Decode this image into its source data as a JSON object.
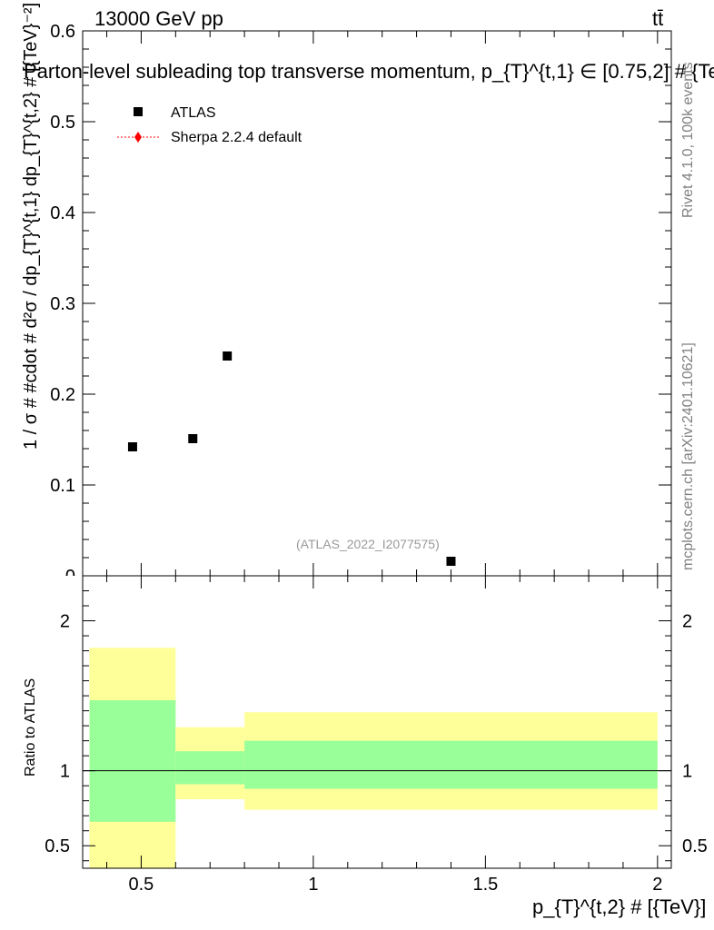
{
  "header": {
    "energy_label": "13000 GeV pp",
    "process_label": "tt̄"
  },
  "side_text": {
    "rivet": "Rivet 4.1.0,  100k events",
    "mcplots": "mcplots.cern.ch [arXiv:2401.10621]"
  },
  "colors": {
    "atlas_marker": "#000000",
    "sherpa_line": "#ff0000",
    "band_outer": "#ffff99",
    "band_inner": "#99ff99",
    "analysis_label": "#999999"
  },
  "chart_data": [
    {
      "type": "scatter",
      "title": "Parton-level subleading top transverse momentum, p_{T}^{t,1} ∈ [0.75,2] # {Te",
      "ylabel": "1 / σ # #cdot # d²σ / dp_{T}^{t,1} dp_{T}^{t,2} # [{TeV}⁻²]",
      "xlim": [
        0.33,
        2.04
      ],
      "ylim": [
        0,
        0.6
      ],
      "yticks": [
        0.1,
        0.2,
        0.3,
        0.4,
        0.5,
        0.6
      ],
      "ytick_labels": [
        "0.1",
        "0.2",
        "0.3",
        "0.4",
        "0.5",
        "0.6"
      ],
      "partial_tick_label": "0",
      "legend_position": "top-left",
      "analysis_label": "(ATLAS_2022_I2077575)",
      "series": [
        {
          "name": "ATLAS",
          "marker": "square",
          "x": [
            0.475,
            0.65,
            0.75,
            1.4
          ],
          "y": [
            0.142,
            0.151,
            0.242,
            0.016
          ]
        },
        {
          "name": "Sherpa 2.2.4 default",
          "marker": "diamond",
          "line": "dotted",
          "x": [],
          "y": []
        }
      ]
    },
    {
      "type": "area",
      "ylabel": "Ratio to ATLAS",
      "xlabel": "p_{T}^{t,2} # [{TeV}]",
      "xlim": [
        0.33,
        2.04
      ],
      "ylim": [
        0.35,
        2.3
      ],
      "xticks": [
        0.5,
        1,
        1.5,
        2
      ],
      "xtick_labels": [
        "0.5",
        "1",
        "1.5",
        "2"
      ],
      "yticks": [
        0.5,
        1,
        2
      ],
      "ytick_labels": [
        "0.5",
        "1",
        "2"
      ],
      "reference_line": 1,
      "bins": [
        {
          "x_low": 0.35,
          "x_high": 0.6,
          "outer_low": 0.35,
          "outer_high": 1.82,
          "inner_low": 0.66,
          "inner_high": 1.47
        },
        {
          "x_low": 0.6,
          "x_high": 0.8,
          "outer_low": 0.81,
          "outer_high": 1.29,
          "inner_low": 0.91,
          "inner_high": 1.13
        },
        {
          "x_low": 0.8,
          "x_high": 2.0,
          "outer_low": 0.74,
          "outer_high": 1.39,
          "inner_low": 0.88,
          "inner_high": 1.2
        }
      ]
    }
  ]
}
